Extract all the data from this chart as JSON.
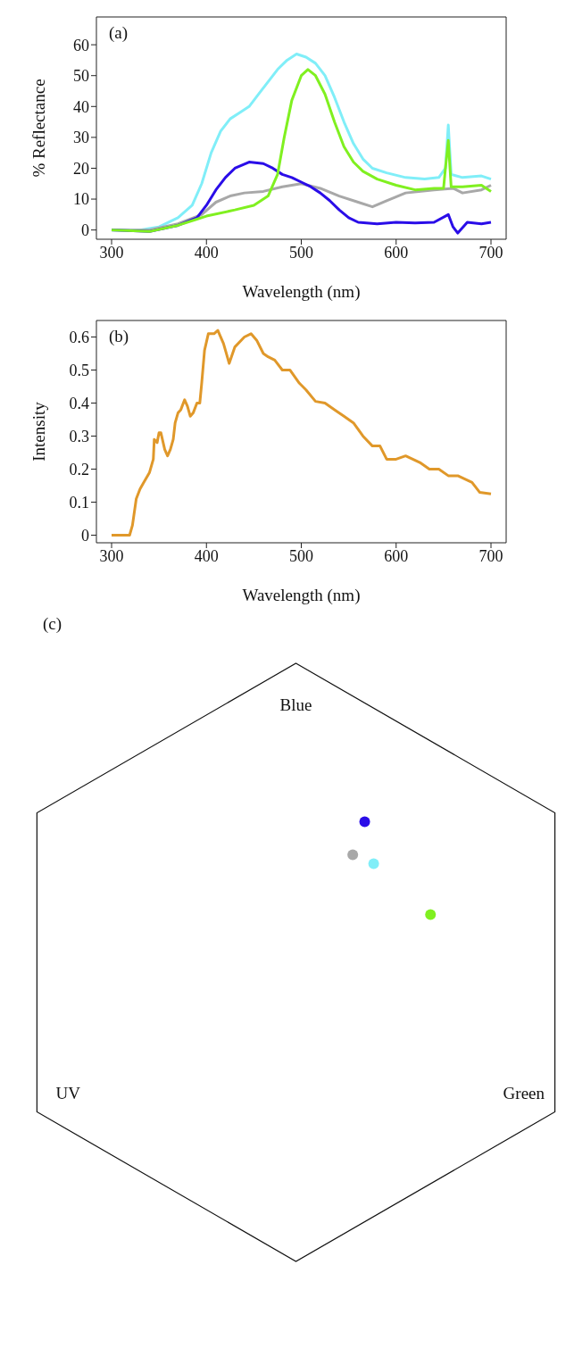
{
  "chart_data": [
    {
      "type": "line",
      "xlabel": "Wavelength (nm)",
      "ylabel": "% Reflectance",
      "annotations": [
        "(a)"
      ],
      "xlim": [
        284,
        716
      ],
      "ylim": [
        -3,
        69
      ],
      "xticks": [
        300,
        400,
        500,
        600,
        700
      ],
      "yticks": [
        0,
        10,
        20,
        30,
        40,
        50,
        60
      ],
      "line_style": "solid",
      "marker": "none",
      "series": [
        {
          "color": "#80eef8",
          "x": [
            300,
            330,
            350,
            370,
            385,
            395,
            405,
            415,
            425,
            435,
            445,
            455,
            465,
            475,
            485,
            495,
            505,
            515,
            525,
            535,
            545,
            555,
            565,
            575,
            590,
            610,
            630,
            645,
            652,
            655,
            658,
            670,
            690,
            700
          ],
          "values": [
            0,
            0,
            1,
            4,
            8,
            15,
            25,
            32,
            36,
            38,
            40,
            44,
            48,
            52,
            55,
            57,
            56,
            54,
            50,
            43,
            35,
            28,
            23,
            20,
            18.5,
            17,
            16.5,
            17,
            20,
            34,
            18,
            17,
            17.5,
            16.5
          ]
        },
        {
          "color": "#a8a8a8",
          "x": [
            300,
            340,
            370,
            395,
            410,
            425,
            440,
            460,
            480,
            500,
            520,
            540,
            560,
            575,
            590,
            610,
            640,
            660,
            670,
            690,
            700
          ],
          "values": [
            0,
            0,
            2,
            5,
            9,
            11,
            12,
            12.5,
            14,
            15,
            13.5,
            11,
            9,
            7.5,
            9.5,
            12,
            13,
            13.5,
            12,
            13,
            14.5
          ]
        },
        {
          "color": "#2a0de8",
          "x": [
            300,
            340,
            370,
            390,
            400,
            410,
            420,
            430,
            445,
            460,
            470,
            480,
            490,
            500,
            510,
            520,
            530,
            540,
            550,
            560,
            580,
            600,
            620,
            640,
            655,
            660,
            665,
            675,
            690,
            700
          ],
          "values": [
            0,
            -0.5,
            1.5,
            4,
            8,
            13,
            17,
            20,
            22,
            21.5,
            20,
            18,
            17,
            15.5,
            14,
            12,
            9.5,
            6.5,
            4,
            2.5,
            2,
            2.5,
            2.3,
            2.5,
            5,
            1,
            -1,
            2.5,
            2,
            2.5
          ]
        },
        {
          "color": "#80f020",
          "x": [
            300,
            340,
            370,
            390,
            400,
            430,
            450,
            465,
            475,
            482,
            490,
            500,
            507,
            515,
            525,
            535,
            545,
            555,
            565,
            580,
            600,
            620,
            640,
            650,
            652,
            655,
            658,
            670,
            690,
            700
          ],
          "values": [
            0,
            -0.5,
            1.5,
            3.5,
            4.5,
            6.5,
            8,
            11,
            18,
            30,
            42,
            50,
            52,
            50,
            44,
            35,
            27,
            22,
            19,
            16.5,
            14.5,
            13,
            13.5,
            13.5,
            20,
            29,
            14,
            14,
            14.5,
            12.5
          ]
        }
      ]
    },
    {
      "type": "line",
      "xlabel": "Wavelength (nm)",
      "ylabel": "Intensity",
      "annotations": [
        "(b)"
      ],
      "xlim": [
        284,
        716
      ],
      "ylim": [
        -0.023,
        0.65
      ],
      "xticks": [
        300,
        400,
        500,
        600,
        700
      ],
      "yticks": [
        0,
        0.1,
        0.2,
        0.3,
        0.4,
        0.5,
        0.6
      ],
      "line_style": "solid",
      "marker": "none",
      "series": [
        {
          "color": "#e0982a",
          "x": [
            300,
            319,
            322,
            326,
            330,
            334,
            340,
            344,
            345,
            348,
            350,
            352,
            356,
            359,
            362,
            365,
            367,
            370,
            373,
            377,
            380,
            383,
            386,
            390,
            393,
            395,
            398,
            402,
            408,
            412,
            418,
            424,
            430,
            440,
            447,
            453,
            460,
            465,
            472,
            480,
            488,
            493,
            498,
            505,
            515,
            525,
            535,
            545,
            555,
            565,
            575,
            583,
            590,
            600,
            610,
            625,
            635,
            645,
            655,
            665,
            680,
            688,
            700
          ],
          "values": [
            0,
            0,
            0.03,
            0.11,
            0.14,
            0.16,
            0.19,
            0.23,
            0.29,
            0.28,
            0.31,
            0.31,
            0.26,
            0.24,
            0.26,
            0.29,
            0.34,
            0.37,
            0.38,
            0.41,
            0.39,
            0.36,
            0.37,
            0.4,
            0.4,
            0.46,
            0.56,
            0.61,
            0.61,
            0.62,
            0.58,
            0.52,
            0.57,
            0.6,
            0.61,
            0.59,
            0.55,
            0.54,
            0.53,
            0.5,
            0.5,
            0.48,
            0.46,
            0.44,
            0.405,
            0.4,
            0.38,
            0.36,
            0.34,
            0.3,
            0.27,
            0.27,
            0.23,
            0.23,
            0.24,
            0.22,
            0.2,
            0.2,
            0.18,
            0.18,
            0.16,
            0.13,
            0.125
          ]
        }
      ]
    },
    {
      "type": "other",
      "annotations": [
        "(c)",
        "Blue",
        "UV",
        "Green"
      ]
    }
  ]
}
